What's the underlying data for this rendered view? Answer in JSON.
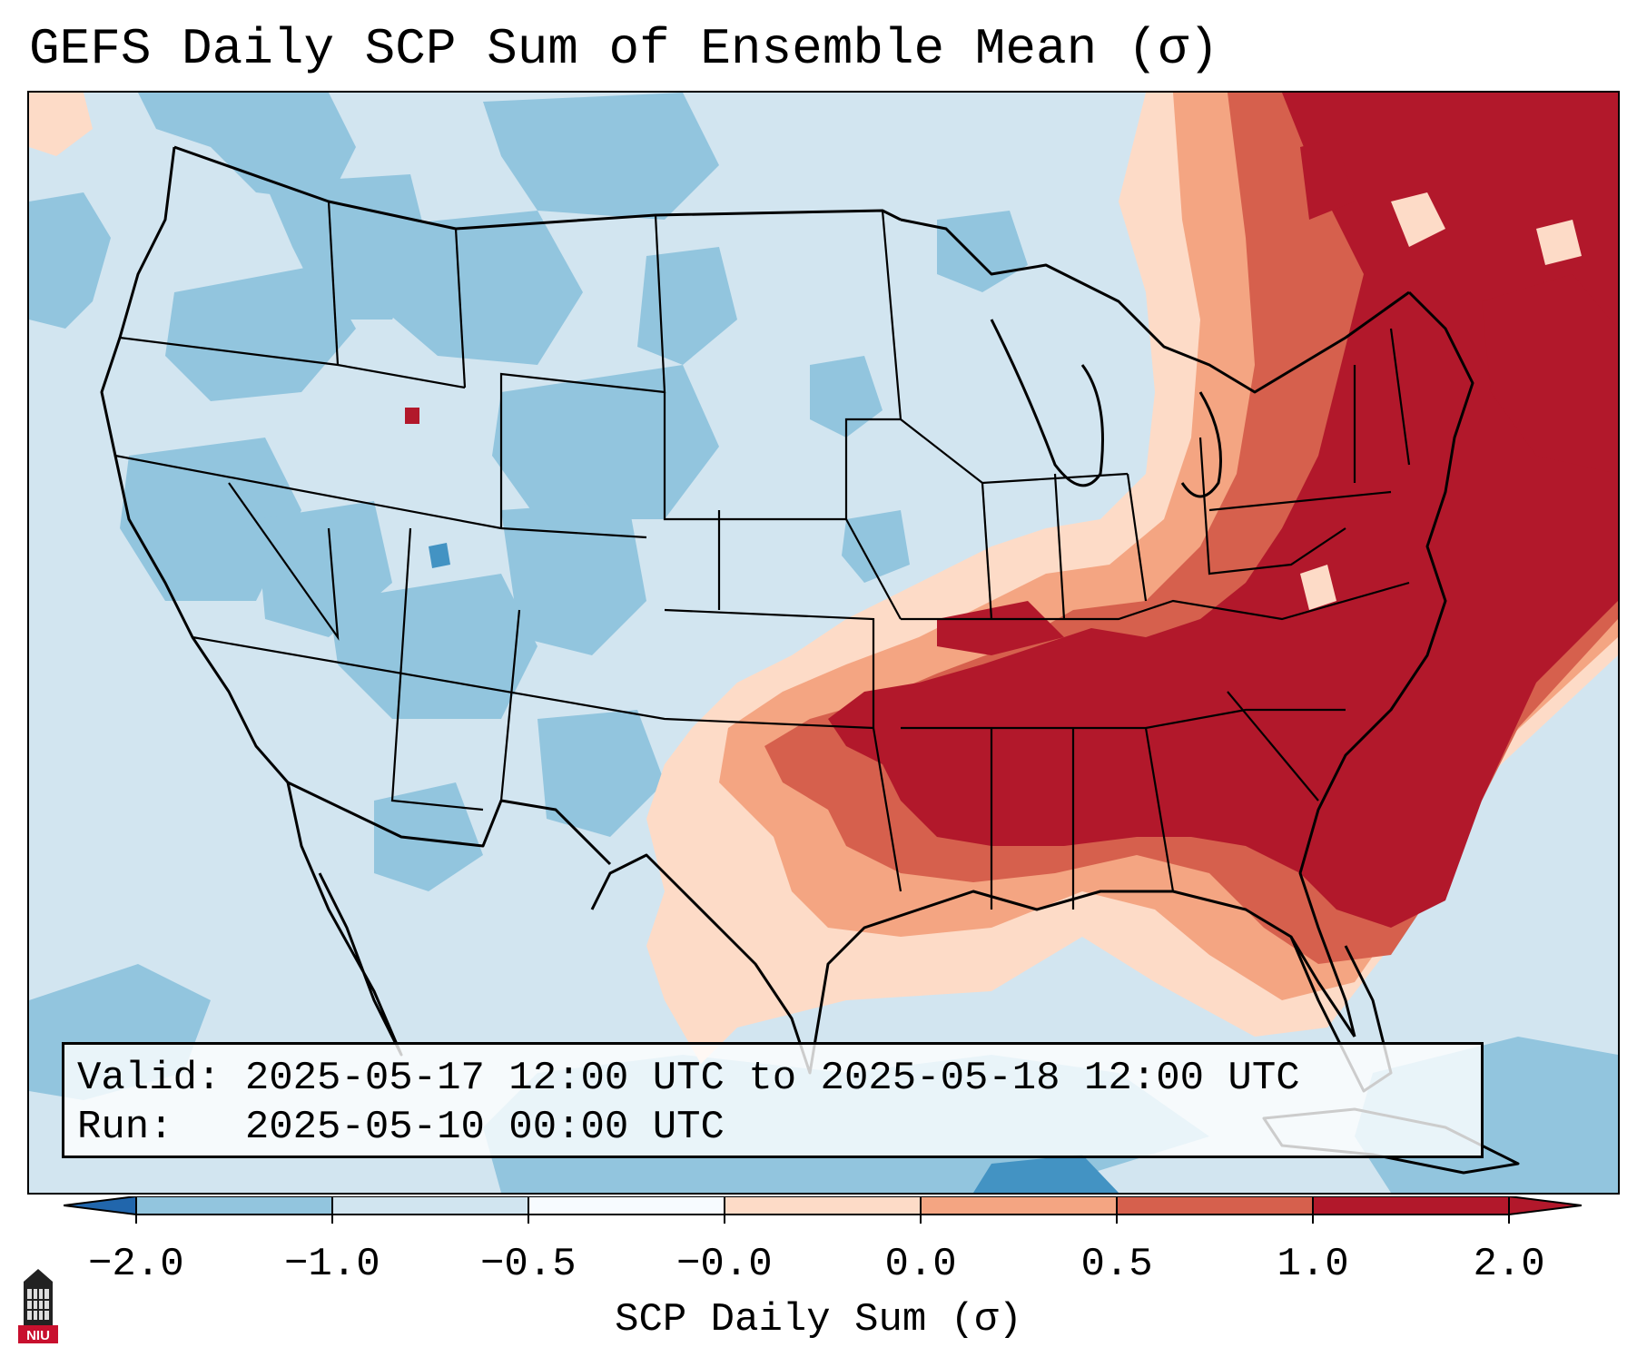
{
  "title": "GEFS Daily SCP Sum of Ensemble Mean (σ)",
  "info": {
    "valid_label": "Valid:",
    "valid_value": "2025-05-17 12:00 UTC to 2025-05-18 12:00 UTC",
    "run_label": "Run:",
    "run_value": "2025-05-10 00:00 UTC"
  },
  "colorbar": {
    "label": "SCP Daily Sum (σ)",
    "ticks": [
      "−2.0",
      "−1.0",
      "−0.5",
      "−0.0",
      "0.0",
      "0.5",
      "1.0",
      "2.0"
    ],
    "colors": [
      "#4393c3",
      "#92c5de",
      "#d1e5f0",
      "#f7fbff",
      "#fddbc7",
      "#f4a582",
      "#d6604d",
      "#b2182b"
    ],
    "under_color": "#2166ac",
    "over_color": "#b2182b"
  },
  "logo": {
    "text": "NIU",
    "icon": "niu-castle-logo"
  },
  "map": {
    "background_color": "#d2e5f0",
    "strong_color": "#b2182b",
    "high_color": "#d6604d",
    "mid_color": "#f4a582",
    "low_color": "#fddbc7",
    "cool_color": "#92c5de",
    "very_cool_color": "#4393c3"
  }
}
